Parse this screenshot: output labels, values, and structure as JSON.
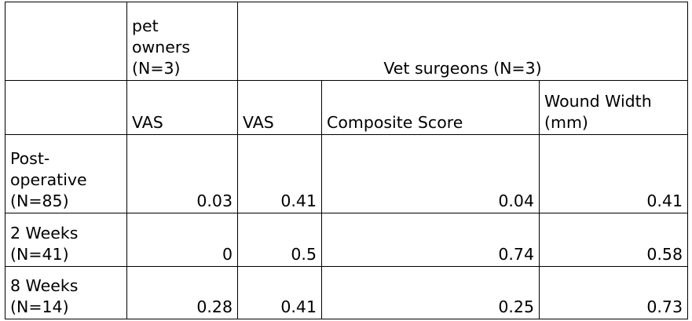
{
  "header": {
    "pet_owners": "pet\nowners\n(N=3)",
    "vet_surgeons": "Vet surgeons (N=3)"
  },
  "subheader": {
    "col1": "VAS",
    "col2": "VAS",
    "col3": "Composite Score",
    "col4": "Wound Width\n(mm)"
  },
  "rows": [
    {
      "label": "Post-\noperative\n(N=85)",
      "owner_vas": "0.03",
      "vet_vas": "0.41",
      "composite": "0.04",
      "wound_width": "0.41"
    },
    {
      "label": "2 Weeks\n(N=41)",
      "owner_vas": "0",
      "vet_vas": "0.5",
      "composite": "0.74",
      "wound_width": "0.58"
    },
    {
      "label": "8 Weeks\n(N=14)",
      "owner_vas": "0.28",
      "vet_vas": "0.41",
      "composite": "0.25",
      "wound_width": "0.73"
    }
  ]
}
